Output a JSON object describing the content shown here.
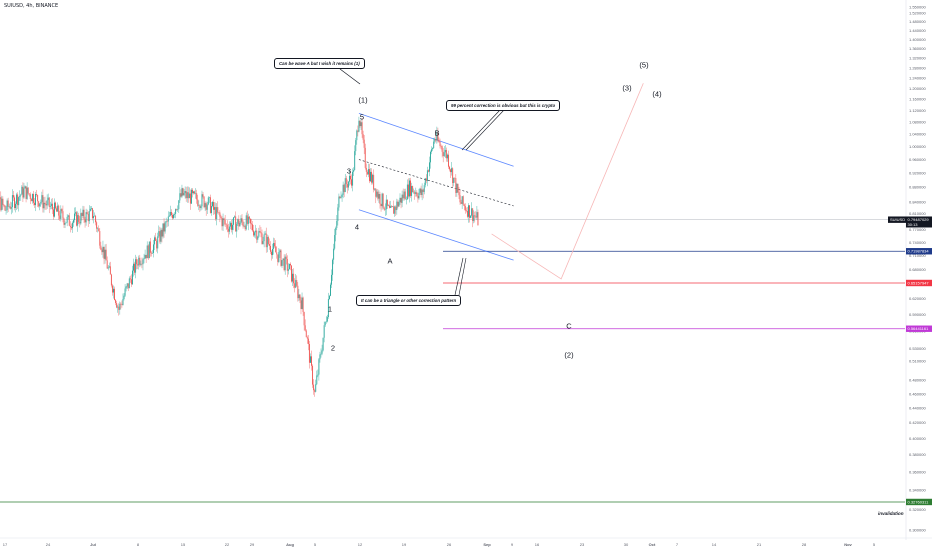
{
  "symbol_title": "SUIUSD, 4h, BINANCE",
  "callouts": {
    "wave_a_note": "Can be wave A but I wish it remains (1)",
    "correction_note": "99 percent correction is obvious but this is crypto",
    "triangle_note": "It can be a triangle or other correction pattern"
  },
  "wave_labels": {
    "w1_paren": "(1)",
    "w5": "5",
    "w3": "3",
    "w4": "4",
    "w1": "1",
    "w2": "2",
    "wA": "A",
    "wB": "B",
    "wC": "C",
    "w2_paren": "(2)",
    "w3_paren": "(3)",
    "w4_paren": "(4)",
    "w5_paren": "(5)"
  },
  "invalidation_label": "invalidation",
  "colors": {
    "up": "#26a69a",
    "down": "#ef5350",
    "channel": "#2962ff",
    "level_blue": "#1e3a8a",
    "level_red": "#f23645",
    "level_purple": "#c039d6",
    "level_green": "#2e7d32",
    "current_price": "#131722",
    "projection": "#f7b7b7"
  },
  "chart_data": {
    "type": "candlestick",
    "symbol": "SUIUSD",
    "timeframe": "4h",
    "exchange": "BINANCE",
    "x_tick_labels": [
      "17",
      "24",
      "Jul",
      "8",
      "15",
      "22",
      "29",
      "Aug",
      "5",
      "12",
      "19",
      "26",
      "Sep",
      "9",
      "16",
      "23",
      "30",
      "Oct",
      "7",
      "14",
      "21",
      "28",
      "Nov",
      "5"
    ],
    "y_tick_labels": [
      "1.550000",
      "1.520000",
      "1.480000",
      "1.440000",
      "1.400000",
      "1.360000",
      "1.320000",
      "1.280000",
      "1.240000",
      "1.200000",
      "1.160000",
      "1.120000",
      "1.080000",
      "1.040000",
      "1.000000",
      "0.960000",
      "0.920000",
      "0.880000",
      "0.840000",
      "0.810000",
      "0.770000",
      "0.740000",
      "0.710000",
      "0.680000",
      "0.650000",
      "0.620000",
      "0.590000",
      "0.560000",
      "0.530000",
      "0.510000",
      "0.480000",
      "0.460000",
      "0.440000",
      "0.420000",
      "0.400000",
      "0.380000",
      "0.360000",
      "0.340000",
      "0.320000",
      "0.300000"
    ],
    "price_path": [
      {
        "date": "Jun 14",
        "price": 0.9
      },
      {
        "date": "Jun 17",
        "price": 0.82
      },
      {
        "date": "Jun 20",
        "price": 0.87
      },
      {
        "date": "Jun 24",
        "price": 0.83
      },
      {
        "date": "Jun 27",
        "price": 0.79
      },
      {
        "date": "Jul 1",
        "price": 0.81
      },
      {
        "date": "Jul 5",
        "price": 0.6
      },
      {
        "date": "Jul 8",
        "price": 0.7
      },
      {
        "date": "Jul 11",
        "price": 0.74
      },
      {
        "date": "Jul 15",
        "price": 0.86
      },
      {
        "date": "Jul 19",
        "price": 0.84
      },
      {
        "date": "Jul 22",
        "price": 0.78
      },
      {
        "date": "Jul 25",
        "price": 0.79
      },
      {
        "date": "Jul 28",
        "price": 0.75
      },
      {
        "date": "Aug 1",
        "price": 0.68
      },
      {
        "date": "Aug 3",
        "price": 0.61
      },
      {
        "date": "Aug 5",
        "price": 0.46
      },
      {
        "date": "Aug 7",
        "price": 0.6
      },
      {
        "date": "Aug 9",
        "price": 0.87
      },
      {
        "date": "Aug 11",
        "price": 0.91
      },
      {
        "date": "Aug 12",
        "price": 1.11
      },
      {
        "date": "Aug 13",
        "price": 0.95
      },
      {
        "date": "Aug 15",
        "price": 0.86
      },
      {
        "date": "Aug 17",
        "price": 0.81
      },
      {
        "date": "Aug 20",
        "price": 0.88
      },
      {
        "date": "Aug 22",
        "price": 0.86
      },
      {
        "date": "Aug 24",
        "price": 1.03
      },
      {
        "date": "Aug 26",
        "price": 0.97
      },
      {
        "date": "Aug 28",
        "price": 0.84
      },
      {
        "date": "Aug 30",
        "price": 0.81
      },
      {
        "date": "Aug 31",
        "price": 0.79
      }
    ],
    "current_price": {
      "label": "SUIUSD",
      "value": "0.79487029",
      "sub": "30:13"
    },
    "price_levels": [
      {
        "name": "level-blue",
        "value": 0.71987834,
        "label": "0.71987834"
      },
      {
        "name": "level-red",
        "value": 0.65157947,
        "label": "0.65157947"
      },
      {
        "name": "level-purple",
        "value": 0.56441161,
        "label": "0.56441161"
      },
      {
        "name": "invalidation",
        "value": 0.32760311,
        "label": "0.32760311"
      }
    ],
    "projection_path": [
      {
        "date": "Sep 2",
        "price": 0.76
      },
      {
        "date": "Sep 13",
        "price": 0.66
      },
      {
        "date": "Sep 26",
        "price": 1.22
      }
    ],
    "channel_lower": [
      {
        "date": "Aug 12",
        "price": 0.82
      },
      {
        "date": "Sep 5",
        "price": 0.7
      }
    ],
    "channel_upper": [
      {
        "date": "Aug 12",
        "price": 1.11
      },
      {
        "date": "Sep 5",
        "price": 0.94
      }
    ],
    "channel_mid": [
      {
        "date": "Aug 12",
        "price": 0.96
      },
      {
        "date": "Sep 5",
        "price": 0.83
      }
    ]
  }
}
